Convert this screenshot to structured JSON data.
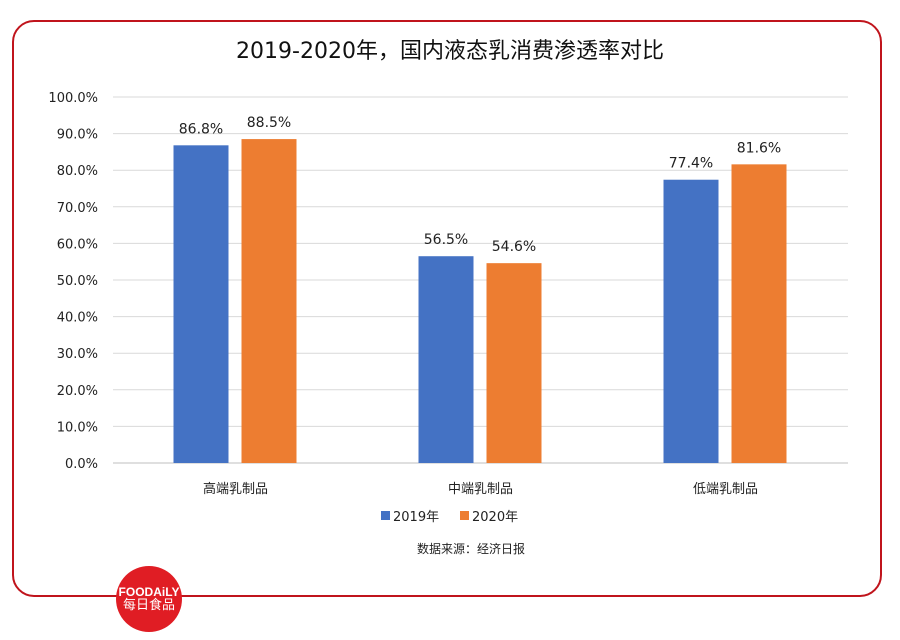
{
  "chart_data": {
    "type": "bar",
    "title": "2019-2020年，国内液态乳消费渗透率对比",
    "categories": [
      "高端乳制品",
      "中端乳制品",
      "低端乳制品"
    ],
    "series": [
      {
        "name": "2019年",
        "color": "#4472c4",
        "values": [
          86.8,
          56.5,
          77.4
        ],
        "labels": [
          "86.8%",
          "56.5%",
          "77.4%"
        ]
      },
      {
        "name": "2020年",
        "color": "#ed7d31",
        "values": [
          88.5,
          54.6,
          81.6
        ],
        "labels": [
          "88.5%",
          "54.6%",
          "81.6%"
        ]
      }
    ],
    "ylim": [
      0,
      100
    ],
    "yticks": [
      "0.0%",
      "10.0%",
      "20.0%",
      "30.0%",
      "40.0%",
      "50.0%",
      "60.0%",
      "70.0%",
      "80.0%",
      "90.0%",
      "100.0%"
    ],
    "grid": true,
    "legend": "bottom",
    "source": "数据来源：经济日报"
  },
  "logo": {
    "en": "FOODAiLY",
    "cn": "每日食品",
    "color": "#e01d24"
  },
  "frame_color": "#c0141c"
}
